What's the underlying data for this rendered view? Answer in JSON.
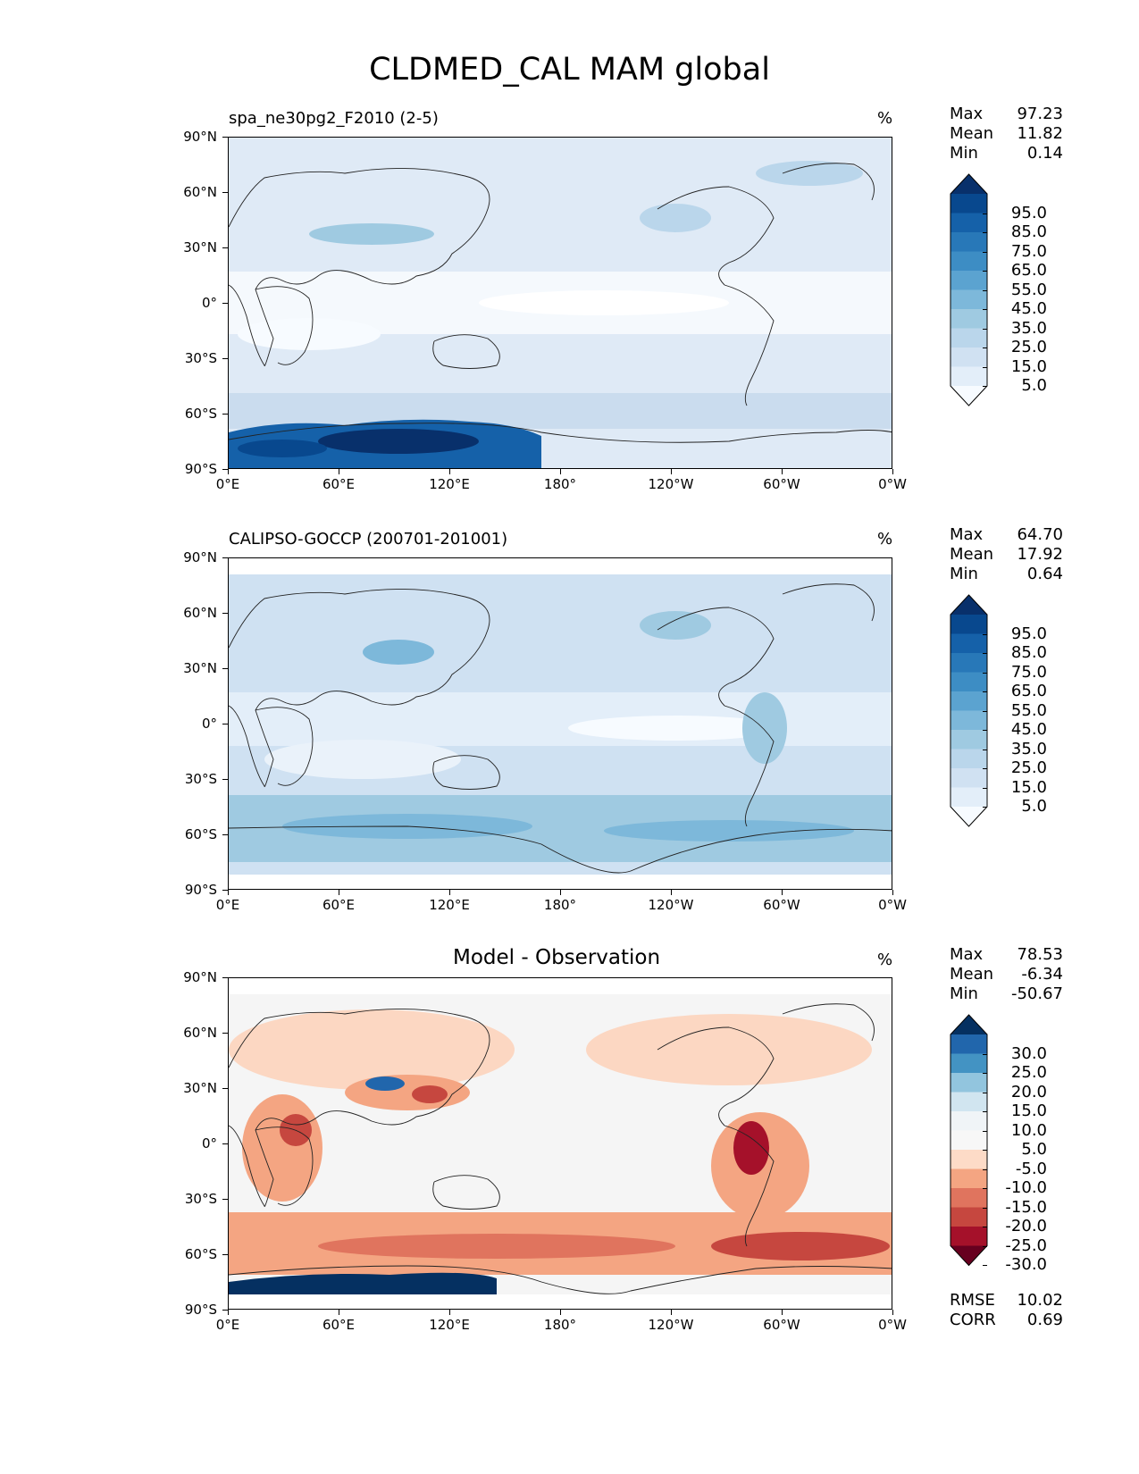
{
  "title": "CLDMED_CAL MAM global",
  "unit": "%",
  "lat_ticks": [
    "90°N",
    "60°N",
    "30°N",
    "0°",
    "30°S",
    "60°S",
    "90°S"
  ],
  "lon_ticks": [
    "0°E",
    "60°E",
    "120°E",
    "180°",
    "120°W",
    "60°W",
    "0°W"
  ],
  "panels": [
    {
      "title": "spa_ne30pg2_F2010 (2-5)",
      "stats": [
        {
          "k": "Max",
          "v": "97.23"
        },
        {
          "k": "Mean",
          "v": "11.82"
        },
        {
          "k": "Min",
          "v": "0.14"
        }
      ],
      "colorbar": [
        "95.0",
        "85.0",
        "75.0",
        "65.0",
        "55.0",
        "45.0",
        "35.0",
        "25.0",
        "15.0",
        "5.0"
      ],
      "colors": [
        "#08306b",
        "#08488e",
        "#1561a9",
        "#2878b8",
        "#3d8dc4",
        "#5ba3d0",
        "#7db8da",
        "#9fcae1",
        "#bad6eb",
        "#d0e1f2",
        "#e3eef9",
        "#f7fbff"
      ]
    },
    {
      "title": "CALIPSO-GOCCP (200701-201001)",
      "stats": [
        {
          "k": "Max",
          "v": "64.70"
        },
        {
          "k": "Mean",
          "v": "17.92"
        },
        {
          "k": "Min",
          "v": "0.64"
        }
      ],
      "colorbar": [
        "95.0",
        "85.0",
        "75.0",
        "65.0",
        "55.0",
        "45.0",
        "35.0",
        "25.0",
        "15.0",
        "5.0"
      ],
      "colors": [
        "#08306b",
        "#08488e",
        "#1561a9",
        "#2878b8",
        "#3d8dc4",
        "#5ba3d0",
        "#7db8da",
        "#9fcae1",
        "#bad6eb",
        "#d0e1f2",
        "#e3eef9",
        "#f7fbff"
      ]
    },
    {
      "title": "Model - Observation",
      "stats": [
        {
          "k": "Max",
          "v": "78.53"
        },
        {
          "k": "Mean",
          "v": "-6.34"
        },
        {
          "k": "Min",
          "v": "-50.67"
        }
      ],
      "colorbar": [
        "30.0",
        "25.0",
        "20.0",
        "15.0",
        "10.0",
        "5.0",
        "-5.0",
        "-10.0",
        "-15.0",
        "-20.0",
        "-25.0",
        "-30.0"
      ],
      "colors": [
        "#053061",
        "#2166ac",
        "#4393c3",
        "#92c5de",
        "#d1e5f0",
        "#f0f4f7",
        "#f7f7f7",
        "#fddbc7",
        "#f4a582",
        "#e0745e",
        "#c6473f",
        "#a5112a",
        "#67001f"
      ],
      "metrics": [
        {
          "k": "RMSE",
          "v": "10.02"
        },
        {
          "k": "CORR",
          "v": "0.69"
        }
      ]
    }
  ]
}
